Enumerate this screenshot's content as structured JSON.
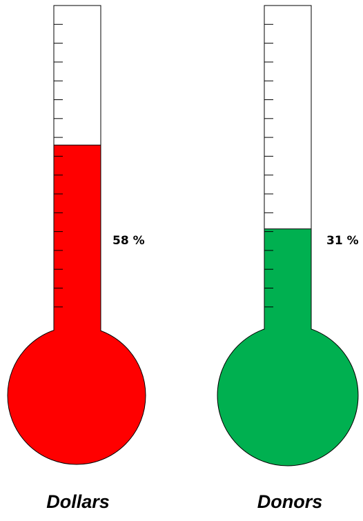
{
  "gauges": [
    {
      "label": "Dollars",
      "percent_text": "58 %",
      "fill_fraction": 0.58,
      "color": "#ff0000"
    },
    {
      "label": "Donors",
      "percent_text": "31 %",
      "fill_fraction": 0.31,
      "color": "#00b050"
    }
  ]
}
